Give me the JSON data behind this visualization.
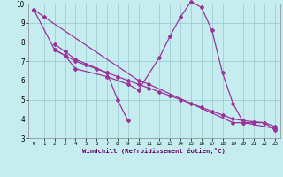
{
  "xlabel": "Windchill (Refroidissement éolien,°C)",
  "xlim": [
    -0.5,
    23.5
  ],
  "ylim": [
    3,
    10
  ],
  "xticks": [
    0,
    1,
    2,
    3,
    4,
    5,
    6,
    7,
    8,
    9,
    10,
    11,
    12,
    13,
    14,
    15,
    16,
    17,
    18,
    19,
    20,
    21,
    22,
    23
  ],
  "yticks": [
    3,
    4,
    5,
    6,
    7,
    8,
    9,
    10
  ],
  "background_color": "#c5edf0",
  "grid_color": "#9ecdd4",
  "line_color": "#993399",
  "series": [
    {
      "x": [
        0,
        1,
        10,
        11,
        19,
        20,
        23
      ],
      "y": [
        9.7,
        9.3,
        6.0,
        5.8,
        3.8,
        3.8,
        3.5
      ]
    },
    {
      "x": [
        2,
        3,
        4,
        7,
        8,
        9
      ],
      "y": [
        7.9,
        7.5,
        7.1,
        6.4,
        5.0,
        3.9
      ]
    },
    {
      "x": [
        2,
        3,
        4,
        7,
        9,
        10,
        12,
        13,
        14,
        15,
        16,
        17,
        18,
        19,
        20,
        21,
        22,
        23
      ],
      "y": [
        7.6,
        7.3,
        6.6,
        6.2,
        5.8,
        5.5,
        7.2,
        8.3,
        9.3,
        10.1,
        9.8,
        8.6,
        6.4,
        4.8,
        3.8,
        3.8,
        3.8,
        3.4
      ]
    },
    {
      "x": [
        0,
        2,
        3,
        4,
        5,
        6,
        7,
        8,
        9,
        10,
        11,
        12,
        13,
        14,
        15,
        16,
        17,
        18,
        19,
        20,
        21,
        22,
        23
      ],
      "y": [
        9.7,
        7.6,
        7.3,
        7.0,
        6.8,
        6.6,
        6.4,
        6.2,
        6.0,
        5.8,
        5.6,
        5.4,
        5.2,
        5.0,
        4.8,
        4.6,
        4.4,
        4.2,
        4.0,
        3.9,
        3.85,
        3.8,
        3.6
      ]
    }
  ]
}
